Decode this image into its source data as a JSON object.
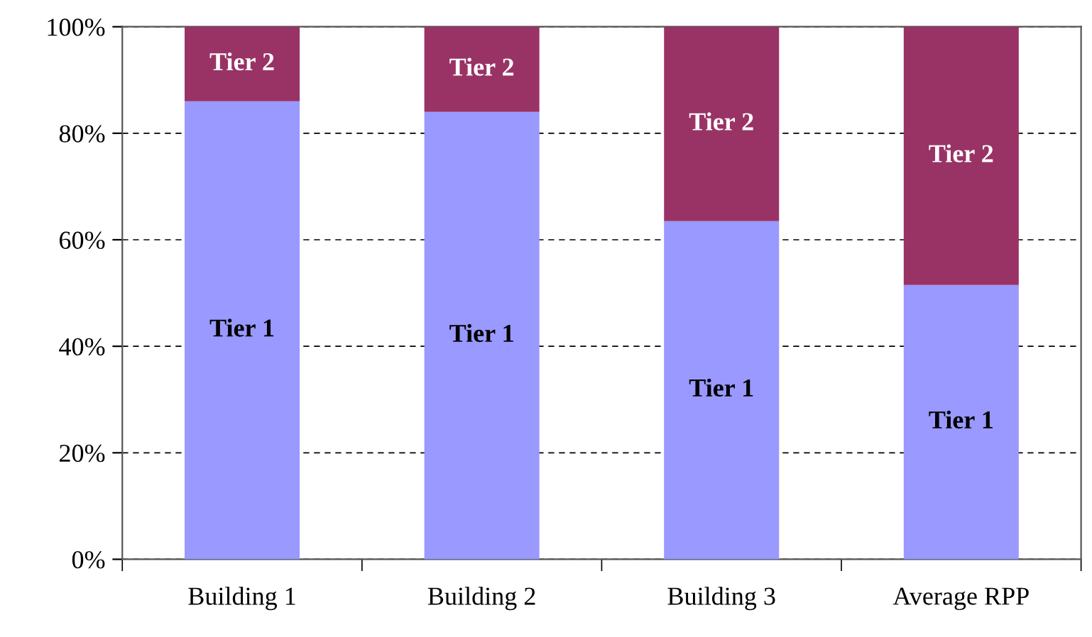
{
  "chart_data": {
    "type": "bar",
    "stacked": true,
    "categories": [
      "Building 1",
      "Building 2",
      "Building 3",
      "Average RPP"
    ],
    "series": [
      {
        "name": "Tier 1",
        "color": "#9999ff",
        "values": [
          86,
          84,
          63.5,
          51.5
        ]
      },
      {
        "name": "Tier 2",
        "color": "#993366",
        "values": [
          14,
          16,
          36.5,
          48.5
        ]
      }
    ],
    "ylim": [
      0,
      100
    ],
    "yticks": [
      {
        "value": 0,
        "label": "0%"
      },
      {
        "value": 20,
        "label": "20%"
      },
      {
        "value": 40,
        "label": "40%"
      },
      {
        "value": 60,
        "label": "60%"
      },
      {
        "value": 80,
        "label": "80%"
      },
      {
        "value": 100,
        "label": "100%"
      }
    ],
    "grid": "y",
    "line_style": "dashed",
    "legend": false
  }
}
